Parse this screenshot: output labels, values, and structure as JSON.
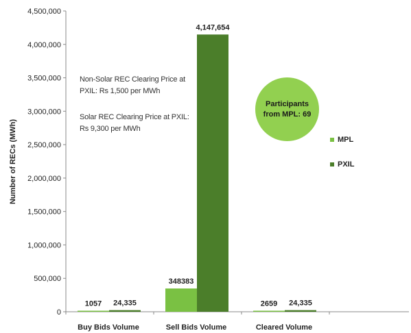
{
  "chart_data": {
    "type": "bar",
    "categories": [
      "Buy Bids Volume",
      "Sell Bids Volume",
      "Cleared Volume"
    ],
    "series": [
      {
        "name": "MPL",
        "values": [
          1057,
          348383,
          2659
        ],
        "labels": [
          "1057",
          "348383",
          "2659"
        ],
        "color": "#7ac143"
      },
      {
        "name": "PXIL",
        "values": [
          24335,
          4147654,
          24335
        ],
        "labels": [
          "24,335",
          "4,147,654",
          "24,335"
        ],
        "color": "#4b7e2a"
      }
    ],
    "ylabel": "Number of RECs (MWh)",
    "ylim": [
      0,
      4500000
    ],
    "yticks": [
      "0",
      "500,000",
      "1,000,000",
      "1,500,000",
      "2,000,000",
      "2,500,000",
      "3,000,000",
      "3,500,000",
      "4,000,000",
      "4,500,000"
    ],
    "grid": false,
    "legend_position": "right"
  },
  "annotations": {
    "note1": "Non-Solar REC Clearing Price at PXIL: Rs 1,500 per MWh",
    "note2": "Solar REC Clearing Price at PXIL: Rs 9,300 per MWh",
    "bubble": "Participants from MPL: 69",
    "bubble_color": "#92d050"
  }
}
